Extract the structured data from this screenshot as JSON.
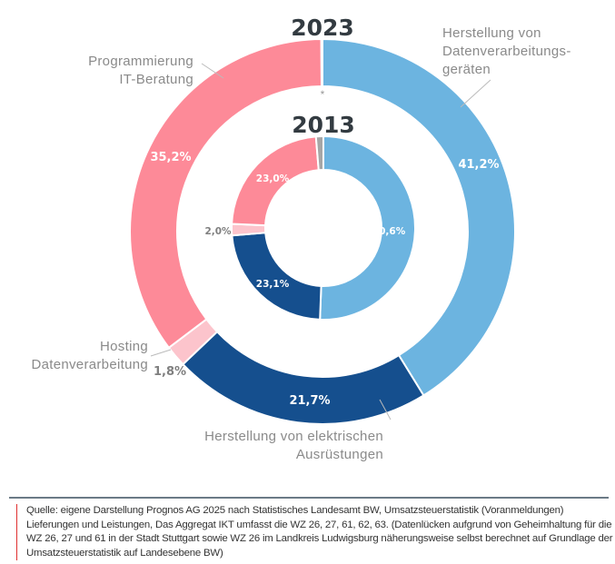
{
  "chart_data": [
    {
      "type": "pie",
      "variant": "donut",
      "title": "2023",
      "categories": [
        "Herstellung von Datenverarbeitungsgeräten",
        "Herstellung von elektrischen Ausrüstungen",
        "Hosting Datenverarbeitung",
        "Programmierung IT-Beratung",
        "*"
      ],
      "values": [
        41.2,
        21.7,
        1.8,
        35.2,
        0.1
      ],
      "labels": [
        "41,2%",
        "21,7%",
        "1,8%",
        "35,2%",
        "*"
      ]
    },
    {
      "type": "pie",
      "variant": "donut",
      "title": "2013",
      "categories": [
        "Herstellung von Datenverarbeitungsgeräten",
        "Herstellung von elektrischen Ausrüstungen",
        "Hosting Datenverarbeitung",
        "Programmierung IT-Beratung",
        "*"
      ],
      "values": [
        50.6,
        23.1,
        2.0,
        23.0,
        1.3
      ],
      "labels": [
        "50,6%",
        "23,1%",
        "2,0%",
        "23,0%",
        ""
      ]
    }
  ],
  "legend_labels": {
    "datenverarbeitung": [
      "Herstellung von",
      "Datenverarbeitungs-",
      "geräten"
    ],
    "elektrisch": [
      "Herstellung von elektrischen",
      "Ausrüstungen"
    ],
    "hosting": [
      "Hosting",
      "Datenverarbeitung"
    ],
    "programmierung": [
      "Programmierung",
      "IT-Beratung"
    ]
  },
  "colors": [
    "#6cb4e0",
    "#154f8e",
    "#fcc4cc",
    "#fd8a98",
    "#a6a6a6"
  ],
  "source": "Quelle: eigene Darstellung Prognos AG 2025 nach Statistisches Landesamt BW, Umsatzsteuerstatistik (Voranmeldungen) Lieferungen und Leistungen, Das Aggregat IKT umfasst die WZ 26, 27, 61, 62, 63. (Datenlücken aufgrund von Geheimhaltung für die WZ 26, 27 und 61 in der Stadt Stuttgart sowie WZ 26 im Landkreis Ludwigsburg näherungsweise selbst berechnet auf Grundlage der Umsatzsteuerstatistik auf Landesebene BW)"
}
